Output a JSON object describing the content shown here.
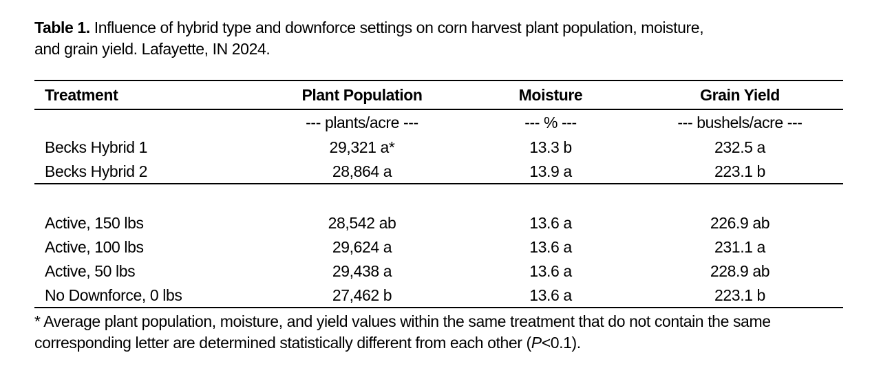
{
  "caption": {
    "label": "Table 1.",
    "lines": [
      "Influence of hybrid type and downforce settings on corn harvest plant population, moisture,",
      "and grain yield. Lafayette, IN 2024."
    ]
  },
  "table": {
    "headers": [
      "Treatment",
      "Plant Population",
      "Moisture",
      "Grain Yield"
    ],
    "units": [
      "",
      "--- plants/acre ---",
      "--- % ---",
      "--- bushels/acre ---"
    ],
    "hybrid_rows": [
      {
        "treatment": "Becks Hybrid 1",
        "plant_population": "29,321 a*",
        "moisture": "13.3 b",
        "grain_yield": "232.5 a"
      },
      {
        "treatment": "Becks Hybrid 2",
        "plant_population": "28,864 a",
        "moisture": "13.9 a",
        "grain_yield": "223.1 b"
      }
    ],
    "downforce_rows": [
      {
        "treatment": "Active, 150 lbs",
        "plant_population": "28,542 ab",
        "moisture": "13.6 a",
        "grain_yield": "226.9 ab"
      },
      {
        "treatment": "Active, 100 lbs",
        "plant_population": "29,624 a",
        "moisture": "13.6 a",
        "grain_yield": "231.1 a"
      },
      {
        "treatment": "Active, 50 lbs",
        "plant_population": "29,438 a",
        "moisture": "13.6 a",
        "grain_yield": "228.9 ab"
      },
      {
        "treatment": "No Downforce, 0 lbs",
        "plant_population": "27,462 b",
        "moisture": "13.6 a",
        "grain_yield": "223.1 b"
      }
    ]
  },
  "footnote": {
    "line1": "* Average plant population, moisture, and yield values within the same treatment that do not contain the same",
    "line2_before_p": "corresponding letter are determined statistically different from each other (",
    "p_symbol": "P",
    "line2_after_p": "<0.1)."
  },
  "colors": {
    "text": "#000000",
    "background": "#ffffff",
    "rule": "#000000"
  }
}
